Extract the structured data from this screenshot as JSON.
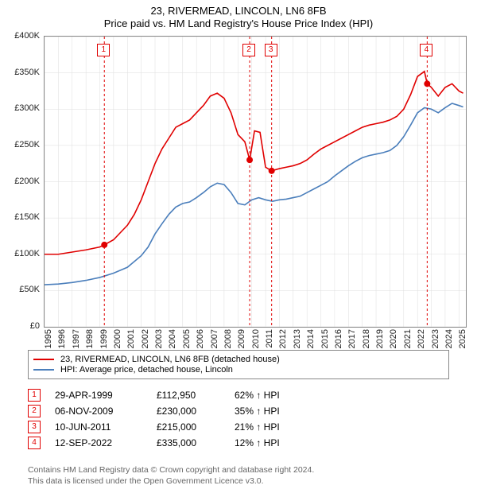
{
  "title": "23, RIVERMEAD, LINCOLN, LN6 8FB",
  "subtitle": "Price paid vs. HM Land Registry's House Price Index (HPI)",
  "chart": {
    "type": "line",
    "background_color": "#ffffff",
    "grid_color": "#dddddd",
    "border_color": "#888888",
    "x_years": [
      1995,
      1996,
      1997,
      1998,
      1999,
      2000,
      2001,
      2002,
      2003,
      2004,
      2005,
      2006,
      2007,
      2008,
      2009,
      2010,
      2011,
      2012,
      2013,
      2014,
      2015,
      2016,
      2017,
      2018,
      2019,
      2020,
      2021,
      2022,
      2023,
      2024,
      2025
    ],
    "xlim": [
      1995,
      2025.5
    ],
    "ylim": [
      0,
      400000
    ],
    "ytick_step": 50000,
    "ytick_labels": [
      "£0",
      "£50K",
      "£100K",
      "£150K",
      "£200K",
      "£250K",
      "£300K",
      "£350K",
      "£400K"
    ],
    "line_width": 1.6,
    "marker_style": "circle",
    "marker_radius": 4,
    "marker_vline_dash": "3,3",
    "series": [
      {
        "id": "price_paid",
        "label": "23, RIVERMEAD, LINCOLN, LN6 8FB (detached house)",
        "color": "#e00000",
        "points": [
          [
            1995.0,
            100000
          ],
          [
            1996.0,
            100000
          ],
          [
            1997.0,
            103000
          ],
          [
            1998.0,
            106000
          ],
          [
            1999.0,
            110000
          ],
          [
            1999.33,
            112950
          ],
          [
            2000.0,
            120000
          ],
          [
            2000.5,
            130000
          ],
          [
            2001.0,
            140000
          ],
          [
            2001.5,
            155000
          ],
          [
            2002.0,
            175000
          ],
          [
            2002.5,
            200000
          ],
          [
            2003.0,
            225000
          ],
          [
            2003.5,
            245000
          ],
          [
            2004.0,
            260000
          ],
          [
            2004.5,
            275000
          ],
          [
            2005.0,
            280000
          ],
          [
            2005.5,
            285000
          ],
          [
            2006.0,
            295000
          ],
          [
            2006.5,
            305000
          ],
          [
            2007.0,
            318000
          ],
          [
            2007.5,
            322000
          ],
          [
            2008.0,
            315000
          ],
          [
            2008.5,
            295000
          ],
          [
            2009.0,
            265000
          ],
          [
            2009.5,
            255000
          ],
          [
            2009.85,
            230000
          ],
          [
            2010.2,
            270000
          ],
          [
            2010.6,
            268000
          ],
          [
            2011.0,
            220000
          ],
          [
            2011.44,
            215000
          ],
          [
            2012.0,
            218000
          ],
          [
            2012.5,
            220000
          ],
          [
            2013.0,
            222000
          ],
          [
            2013.5,
            225000
          ],
          [
            2014.0,
            230000
          ],
          [
            2014.5,
            238000
          ],
          [
            2015.0,
            245000
          ],
          [
            2015.5,
            250000
          ],
          [
            2016.0,
            255000
          ],
          [
            2016.5,
            260000
          ],
          [
            2017.0,
            265000
          ],
          [
            2017.5,
            270000
          ],
          [
            2018.0,
            275000
          ],
          [
            2018.5,
            278000
          ],
          [
            2019.0,
            280000
          ],
          [
            2019.5,
            282000
          ],
          [
            2020.0,
            285000
          ],
          [
            2020.5,
            290000
          ],
          [
            2021.0,
            300000
          ],
          [
            2021.5,
            320000
          ],
          [
            2022.0,
            345000
          ],
          [
            2022.5,
            352000
          ],
          [
            2022.7,
            335000
          ],
          [
            2023.0,
            330000
          ],
          [
            2023.5,
            318000
          ],
          [
            2024.0,
            330000
          ],
          [
            2024.5,
            335000
          ],
          [
            2025.0,
            325000
          ],
          [
            2025.3,
            322000
          ]
        ]
      },
      {
        "id": "hpi",
        "label": "HPI: Average price, detached house, Lincoln",
        "color": "#4a7ebb",
        "points": [
          [
            1995.0,
            58000
          ],
          [
            1996.0,
            59000
          ],
          [
            1997.0,
            61000
          ],
          [
            1998.0,
            64000
          ],
          [
            1999.0,
            68000
          ],
          [
            2000.0,
            74000
          ],
          [
            2001.0,
            82000
          ],
          [
            2002.0,
            98000
          ],
          [
            2002.5,
            110000
          ],
          [
            2003.0,
            128000
          ],
          [
            2003.5,
            142000
          ],
          [
            2004.0,
            155000
          ],
          [
            2004.5,
            165000
          ],
          [
            2005.0,
            170000
          ],
          [
            2005.5,
            172000
          ],
          [
            2006.0,
            178000
          ],
          [
            2006.5,
            185000
          ],
          [
            2007.0,
            193000
          ],
          [
            2007.5,
            198000
          ],
          [
            2008.0,
            196000
          ],
          [
            2008.5,
            185000
          ],
          [
            2009.0,
            170000
          ],
          [
            2009.5,
            168000
          ],
          [
            2010.0,
            175000
          ],
          [
            2010.5,
            178000
          ],
          [
            2011.0,
            175000
          ],
          [
            2011.5,
            173000
          ],
          [
            2012.0,
            175000
          ],
          [
            2012.5,
            176000
          ],
          [
            2013.0,
            178000
          ],
          [
            2013.5,
            180000
          ],
          [
            2014.0,
            185000
          ],
          [
            2014.5,
            190000
          ],
          [
            2015.0,
            195000
          ],
          [
            2015.5,
            200000
          ],
          [
            2016.0,
            208000
          ],
          [
            2016.5,
            215000
          ],
          [
            2017.0,
            222000
          ],
          [
            2017.5,
            228000
          ],
          [
            2018.0,
            233000
          ],
          [
            2018.5,
            236000
          ],
          [
            2019.0,
            238000
          ],
          [
            2019.5,
            240000
          ],
          [
            2020.0,
            243000
          ],
          [
            2020.5,
            250000
          ],
          [
            2021.0,
            262000
          ],
          [
            2021.5,
            278000
          ],
          [
            2022.0,
            295000
          ],
          [
            2022.5,
            302000
          ],
          [
            2023.0,
            300000
          ],
          [
            2023.5,
            295000
          ],
          [
            2024.0,
            302000
          ],
          [
            2024.5,
            308000
          ],
          [
            2025.0,
            305000
          ],
          [
            2025.3,
            303000
          ]
        ]
      }
    ],
    "sale_markers": [
      {
        "n": "1",
        "year": 1999.33,
        "price": 112950
      },
      {
        "n": "2",
        "year": 2009.85,
        "price": 230000
      },
      {
        "n": "3",
        "year": 2011.44,
        "price": 215000
      },
      {
        "n": "4",
        "year": 2022.7,
        "price": 335000
      }
    ],
    "marker_box_top_y": 380000
  },
  "legend": [
    {
      "color": "#e00000",
      "label": "23, RIVERMEAD, LINCOLN, LN6 8FB (detached house)"
    },
    {
      "color": "#4a7ebb",
      "label": "HPI: Average price, detached house, Lincoln"
    }
  ],
  "sales_table": {
    "rows": [
      {
        "n": "1",
        "date": "29-APR-1999",
        "price": "£112,950",
        "diff": "62% ↑ HPI"
      },
      {
        "n": "2",
        "date": "06-NOV-2009",
        "price": "£230,000",
        "diff": "35% ↑ HPI"
      },
      {
        "n": "3",
        "date": "10-JUN-2011",
        "price": "£215,000",
        "diff": "21% ↑ HPI"
      },
      {
        "n": "4",
        "date": "12-SEP-2022",
        "price": "£335,000",
        "diff": "12% ↑ HPI"
      }
    ]
  },
  "footer_line1": "Contains HM Land Registry data © Crown copyright and database right 2024.",
  "footer_line2": "This data is licensed under the Open Government Licence v3.0."
}
